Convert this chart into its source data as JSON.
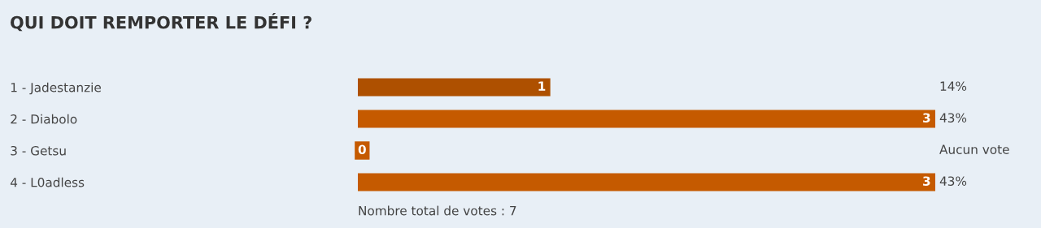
{
  "chart_data": {
    "type": "bar",
    "orientation": "horizontal",
    "title": "QUI DOIT REMPORTER LE DÉFI ?",
    "categories": [
      "1 - Jadestanzie",
      "2 - Diabolo",
      "3 - Getsu",
      "4 - L0adless"
    ],
    "values": [
      1,
      3,
      0,
      3
    ],
    "colors": [
      "#ae5000",
      "#c55a00",
      "#c55a00",
      "#c55a00"
    ],
    "xlim": [
      0,
      3
    ],
    "tick_labels": "y",
    "data_labels": true,
    "grid": false,
    "legend": false,
    "annotations": [
      "14%",
      "43%",
      "Aucun vote",
      "43%",
      "Nombre total de votes : 7"
    ]
  }
}
